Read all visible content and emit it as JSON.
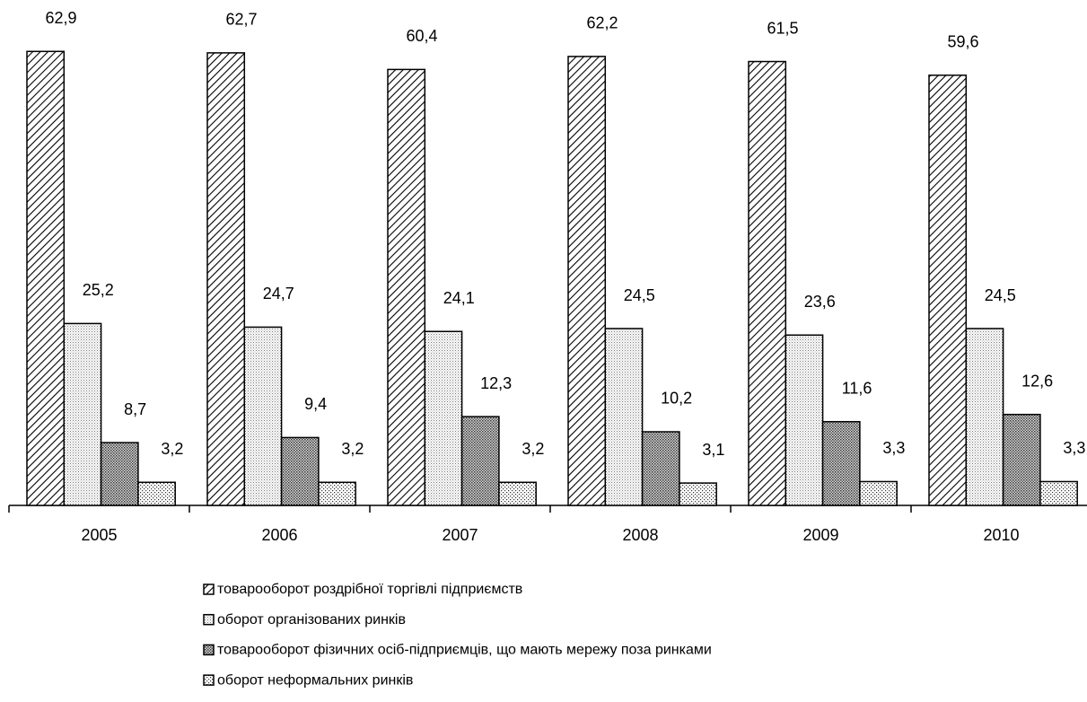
{
  "chart_data": {
    "type": "bar",
    "categories": [
      "2005",
      "2006",
      "2007",
      "2008",
      "2009",
      "2010"
    ],
    "series": [
      {
        "name": "товарооборот роздрібної торгівлі підприємств",
        "values": [
          62.9,
          62.7,
          60.4,
          62.2,
          61.5,
          59.6
        ],
        "value_labels": [
          "62,9",
          "62,7",
          "60,4",
          "62,2",
          "61,5",
          "59,6"
        ]
      },
      {
        "name": "оборот організованих ринків",
        "values": [
          25.2,
          24.7,
          24.1,
          24.5,
          23.6,
          24.5
        ],
        "value_labels": [
          "25,2",
          "24,7",
          "24,1",
          "24,5",
          "23,6",
          "24,5"
        ]
      },
      {
        "name": "товарооборот фізичних осіб-підприємців, що мають мережу поза ринками",
        "values": [
          8.7,
          9.4,
          12.3,
          10.2,
          11.6,
          12.6
        ],
        "value_labels": [
          "8,7",
          "9,4",
          "12,3",
          "10,2",
          "11,6",
          "12,6"
        ]
      },
      {
        "name": "оборот неформальних ринків",
        "values": [
          3.2,
          3.2,
          3.2,
          3.1,
          3.3,
          3.3
        ],
        "value_labels": [
          "3,2",
          "3,2",
          "3,2",
          "3,1",
          "3,3",
          "3,3"
        ]
      }
    ],
    "legend": "bottom"
  }
}
